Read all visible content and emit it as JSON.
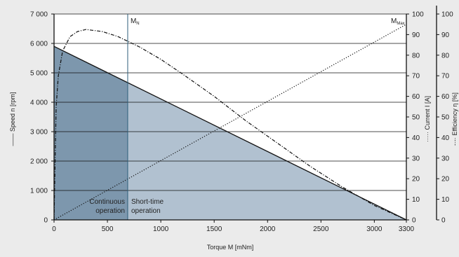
{
  "chart_data": {
    "type": "line",
    "xlabel": "Torque M [mNm]",
    "xlim": [
      0,
      3300
    ],
    "x_ticks": [
      0,
      500,
      1000,
      1500,
      2000,
      2500,
      3000,
      3300
    ],
    "y_axes": [
      {
        "id": "speed",
        "label": "Speed n [rpm]",
        "legend_symbol": "——",
        "range": [
          0,
          7000
        ],
        "ticks": [
          0,
          1000,
          2000,
          3000,
          4000,
          5000,
          6000,
          7000
        ],
        "tick_labels": [
          "0",
          "1 000",
          "2 000",
          "3 000",
          "4 000",
          "5 000",
          "6 000",
          "7 000"
        ]
      },
      {
        "id": "current",
        "label": "Current I [A]",
        "legend_symbol": "·····",
        "range": [
          0,
          100
        ],
        "ticks": [
          0,
          10,
          20,
          30,
          40,
          50,
          60,
          70,
          80,
          90,
          100
        ]
      },
      {
        "id": "efficiency",
        "label": "Efficiency η [%]",
        "legend_symbol": "-·-·",
        "range": [
          0,
          100
        ],
        "ticks": [
          0,
          10,
          20,
          30,
          40,
          50,
          60,
          70,
          80,
          90,
          100
        ]
      }
    ],
    "grid": "horizontal",
    "series": [
      {
        "id": "speed",
        "axis": "speed",
        "style": "solid",
        "x": [
          0,
          3300
        ],
        "y": [
          5900,
          0
        ]
      },
      {
        "id": "current",
        "axis": "current",
        "style": "dotted",
        "x": [
          0,
          3300
        ],
        "y": [
          0,
          95
        ]
      },
      {
        "id": "efficiency",
        "axis": "efficiency",
        "style": "dash-dot",
        "x": [
          0,
          20,
          40,
          80,
          150,
          220,
          300,
          450,
          600,
          800,
          1000,
          1200,
          1500,
          1800,
          2100,
          2400,
          2700,
          3000,
          3300
        ],
        "y": [
          0,
          55,
          70,
          82,
          89,
          91.5,
          92.5,
          91.5,
          89,
          84,
          78,
          71,
          60,
          48,
          37,
          26,
          16,
          7,
          0
        ]
      }
    ],
    "regions": [
      {
        "label": "Continuous operation",
        "x_range": [
          0,
          690
        ],
        "color": "#7d97ad"
      },
      {
        "label": "Short-time operation",
        "x_range": [
          690,
          3300
        ],
        "color": "#b1c1d0"
      }
    ],
    "markers": [
      {
        "label": "M",
        "sub": "N",
        "x": 690
      },
      {
        "label": "M",
        "sub": "Max",
        "x": 3300
      }
    ],
    "region_label_lines": [
      [
        "Continuous",
        "operation"
      ],
      [
        "Short-time",
        "operation"
      ]
    ]
  }
}
